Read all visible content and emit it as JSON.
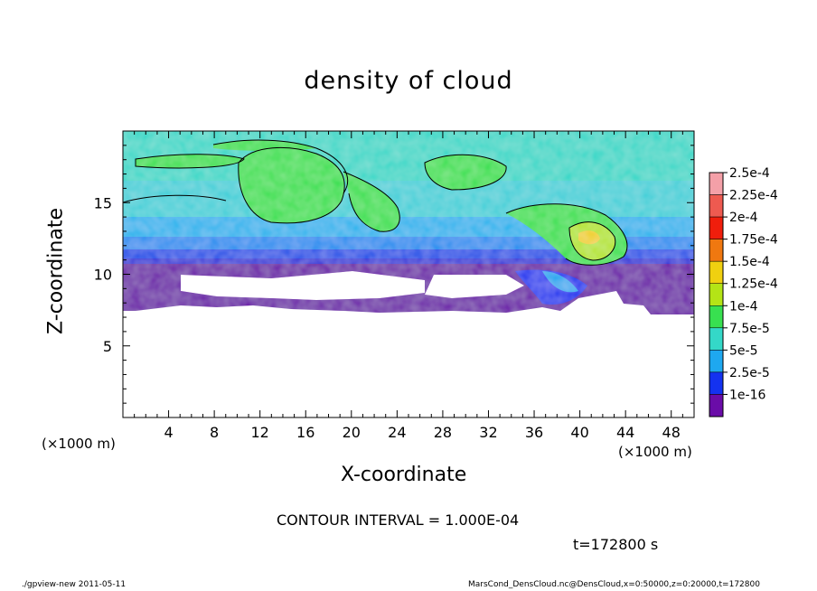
{
  "chart_data": {
    "type": "heatmap",
    "title": "density of cloud",
    "xlabel": "X-coordinate",
    "ylabel": "Z-coordinate",
    "x_unit_label": "(×1000 m)",
    "xlim": [
      0,
      50
    ],
    "ylim": [
      0,
      20
    ],
    "x_ticks": [
      "4",
      "8",
      "12",
      "16",
      "20",
      "24",
      "28",
      "32",
      "36",
      "40",
      "44",
      "48"
    ],
    "y_ticks": [
      "5",
      "10",
      "15"
    ],
    "colorbar": {
      "labels": [
        "2.5e-4",
        "2.25e-4",
        "2e-4",
        "1.75e-4",
        "1.5e-4",
        "1.25e-4",
        "1e-4",
        "7.5e-5",
        "5e-5",
        "2.5e-5",
        "1e-16"
      ],
      "colors": [
        "#f4a0a8",
        "#ee5a50",
        "#f01e0c",
        "#f07810",
        "#f0d010",
        "#b4e416",
        "#38e050",
        "#34d8c8",
        "#1ea8f0",
        "#1432f0",
        "#6a0ca8"
      ]
    },
    "contour_interval_text": "CONTOUR INTERVAL = 1.000E-04",
    "time_text": "t=172800 s"
  },
  "footer": {
    "left": "./gpview-new  2011-05-11",
    "right": "MarsCond_DensCloud.nc@DensCloud,x=0:50000,z=0:20000,t=172800"
  }
}
